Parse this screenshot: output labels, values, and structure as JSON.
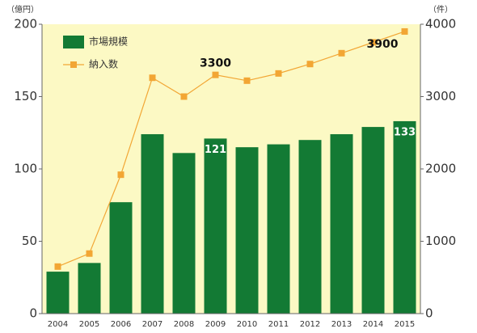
{
  "chart_data": {
    "type": "bar-line",
    "y_unit_label": "（億円）",
    "y2_unit_label": "（件）",
    "categories": [
      "2004",
      "2005",
      "2006",
      "2007",
      "2008",
      "2009",
      "2010",
      "2011",
      "2012",
      "2013",
      "2014",
      "2015"
    ],
    "series": [
      {
        "name": "市場規模",
        "type": "bar",
        "color": "#137a34",
        "values": [
          29,
          35,
          77,
          124,
          111,
          121,
          115,
          117,
          120,
          124,
          129,
          133
        ],
        "value_labels": [
          null,
          null,
          null,
          null,
          null,
          "121",
          null,
          null,
          null,
          null,
          null,
          "133"
        ]
      },
      {
        "name": "納入数",
        "type": "line",
        "axis": "y2",
        "color": "#f2a634",
        "values": [
          650,
          830,
          1920,
          3260,
          3000,
          3300,
          3220,
          3320,
          3450,
          3600,
          3750,
          3900
        ],
        "value_labels": [
          null,
          null,
          null,
          null,
          null,
          "3300",
          null,
          null,
          null,
          null,
          null,
          "3900"
        ]
      }
    ],
    "ylim": [
      0,
      200
    ],
    "yticks": [
      0,
      50,
      100,
      150,
      200
    ],
    "y2lim": [
      0,
      4000
    ],
    "y2ticks": [
      0,
      1000,
      2000,
      3000,
      4000
    ],
    "background": "#fcf9c4"
  }
}
